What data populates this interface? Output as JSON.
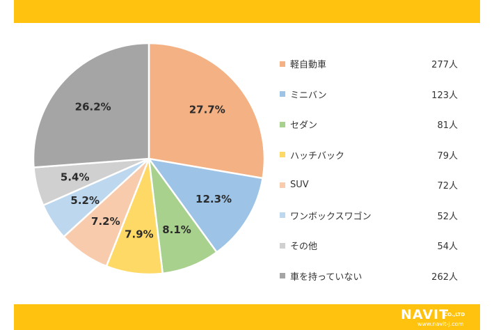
{
  "chart_data": {
    "type": "pie",
    "title": "",
    "slices": [
      {
        "label": "軽自動車",
        "count": "277人",
        "value": 27.7,
        "value_label": "27.7%",
        "color": "#F4B183"
      },
      {
        "label": "ミニバン",
        "count": "123人",
        "value": 12.3,
        "value_label": "12.3%",
        "color": "#9DC3E6"
      },
      {
        "label": "セダン",
        "count": "81人",
        "value": 8.1,
        "value_label": "8.1%",
        "color": "#A9D18E"
      },
      {
        "label": "ハッチバック",
        "count": "79人",
        "value": 7.9,
        "value_label": "7.9%",
        "color": "#FFD966"
      },
      {
        "label": "SUV",
        "count": "72人",
        "value": 7.2,
        "value_label": "7.2%",
        "color": "#F8CBAD"
      },
      {
        "label": "ワンボックスワゴン",
        "count": "52人",
        "value": 5.2,
        "value_label": "5.2%",
        "color": "#BDD7EE"
      },
      {
        "label": "その他",
        "count": "54人",
        "value": 5.4,
        "value_label": "5.4%",
        "color": "#D0D0D0"
      },
      {
        "label": "車を持っていない",
        "count": "262人",
        "value": 26.2,
        "value_label": "26.2%",
        "color": "#A5A5A5"
      }
    ],
    "legend_position": "right"
  },
  "brand": {
    "band_color": "#FFC20E",
    "logo_main": "NAVIT",
    "logo_suffix": "CO.,LTD",
    "logo_url": "www.navit-j.com"
  }
}
